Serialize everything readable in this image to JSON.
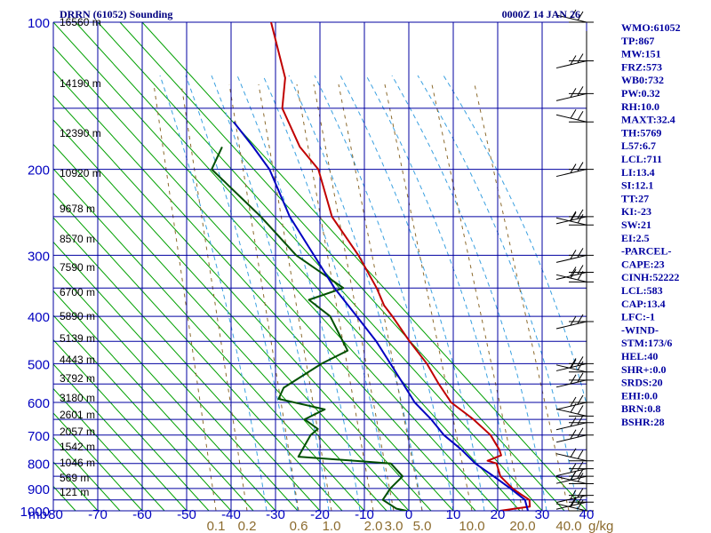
{
  "title_left": "DRRN (61052) Sounding",
  "title_right": "0000Z 14 JAN 26",
  "colors": {
    "isobar": "#0000a0",
    "isotherm": "#0000a0",
    "dry_adiabat": "#00a000",
    "moist_adiabat": "#3aa0e0",
    "mixing_ratio": "#8c6b2e",
    "temperature": "#c00000",
    "dewpoint": "#005000",
    "parcel": "#0000c0",
    "wind": "#000000",
    "text": "#0000a0"
  },
  "chart_data": {
    "type": "skew-t",
    "title": "DRRN (61052) Sounding",
    "time": "0000Z 14 JAN 26",
    "xlabel": "",
    "ylabel": "mb",
    "ylim": [
      1000,
      100
    ],
    "xlim": [
      -80,
      40
    ],
    "pressure_ticks": [
      "100",
      "200",
      "300",
      "400",
      "500",
      "600",
      "700",
      "800",
      "900",
      "1000"
    ],
    "temperature_ticks": [
      "-80",
      "-70",
      "-60",
      "-50",
      "-40",
      "-30",
      "-20",
      "-10",
      "0",
      "10",
      "20",
      "30",
      "40"
    ],
    "y_unit_label": "mb",
    "height_labels": [
      "16560 m",
      "14190 m",
      "12390 m",
      "10920 m",
      "9678 m",
      "8570 m",
      "7590 m",
      "6700 m",
      "5890 m",
      "5139 m",
      "4443 m",
      "3792 m",
      "3180 m",
      "2601 m",
      "2057 m",
      "1542 m",
      "1046 m",
      "569 m",
      "121 m"
    ],
    "mixing_ratio_labels": [
      "0.1",
      "0.2",
      "0.6",
      "1.0",
      "2.0",
      "3.0",
      "5.0",
      "10.0",
      "20.0",
      "40.0",
      "g/kg"
    ],
    "series": [
      {
        "name": "temperature",
        "points": [
          [
            1000,
            20.5
          ],
          [
            980,
            26.8
          ],
          [
            950,
            26.0
          ],
          [
            925,
            23.5
          ],
          [
            900,
            21.0
          ],
          [
            850,
            17.0
          ],
          [
            800,
            14.8
          ],
          [
            790,
            12.5
          ],
          [
            770,
            15.0
          ],
          [
            750,
            14.0
          ],
          [
            700,
            10.5
          ],
          [
            650,
            5.0
          ],
          [
            600,
            -1.8
          ],
          [
            550,
            -6.5
          ],
          [
            500,
            -11.3
          ],
          [
            450,
            -17.5
          ],
          [
            400,
            -24.0
          ],
          [
            380,
            -27.0
          ],
          [
            350,
            -30.5
          ],
          [
            300,
            -38.0
          ],
          [
            250,
            -48.0
          ],
          [
            200,
            -56.0
          ],
          [
            180,
            -62.5
          ],
          [
            150,
            -70.5
          ],
          [
            130,
            -73.0
          ],
          [
            100,
            -82.0
          ]
        ]
      },
      {
        "name": "dewpoint",
        "points": [
          [
            1000,
            -0.5
          ],
          [
            990,
            -3.0
          ],
          [
            950,
            -7.0
          ],
          [
            900,
            -6.5
          ],
          [
            850,
            -5.0
          ],
          [
            800,
            -9.0
          ],
          [
            775,
            -30.5
          ],
          [
            700,
            -30.0
          ],
          [
            680,
            -29.0
          ],
          [
            650,
            -33.0
          ],
          [
            620,
            -29.5
          ],
          [
            590,
            -41.0
          ],
          [
            560,
            -41.0
          ],
          [
            500,
            -35.0
          ],
          [
            470,
            -30.5
          ],
          [
            400,
            -38.0
          ],
          [
            370,
            -44.5
          ],
          [
            350,
            -38.0
          ],
          [
            300,
            -52.0
          ],
          [
            250,
            -64.0
          ],
          [
            200,
            -80.0
          ],
          [
            180,
            -80.0
          ]
        ]
      },
      {
        "name": "parcel",
        "points": [
          [
            1000,
            26.8
          ],
          [
            950,
            25.0
          ],
          [
            900,
            20.5
          ],
          [
            850,
            15.5
          ],
          [
            800,
            10.0
          ],
          [
            750,
            5.5
          ],
          [
            700,
            0.0
          ],
          [
            650,
            -4.5
          ],
          [
            600,
            -10.0
          ],
          [
            550,
            -14.5
          ],
          [
            500,
            -19.5
          ],
          [
            450,
            -25.0
          ],
          [
            400,
            -32.0
          ],
          [
            350,
            -40.0
          ],
          [
            300,
            -48.0
          ],
          [
            250,
            -57.5
          ],
          [
            200,
            -67.0
          ],
          [
            180,
            -73.0
          ],
          [
            160,
            -80.0
          ]
        ]
      }
    ],
    "wind_barbs_label": "wind",
    "wind_barb_pressures": [
      100,
      120,
      140,
      160,
      200,
      250,
      260,
      300,
      325,
      340,
      410,
      500,
      520,
      540,
      600,
      640,
      660,
      700,
      790,
      820,
      850,
      880,
      930,
      960,
      1000
    ]
  },
  "indices": [
    "WMO:61052",
    "TP:867",
    "MW:151",
    "FRZ:573",
    "WB0:732",
    "PW:0.32",
    "RH:10.0",
    "MAXT:32.4",
    "TH:5769",
    "L57:6.7",
    "LCL:711",
    "LI:13.4",
    "SI:12.1",
    "TT:27",
    "KI:-23",
    "SW:21",
    "EI:2.5",
    "-PARCEL-",
    "CAPE:23",
    "CINH:52222",
    "LCL:583",
    "CAP:13.4",
    "LFC:-1",
    "-WIND-",
    "STM:173/6",
    "HEL:40",
    "SHR+:0.0",
    "SRDS:20",
    "EHI:0.0",
    "BRN:0.8",
    "BSHR:28"
  ]
}
